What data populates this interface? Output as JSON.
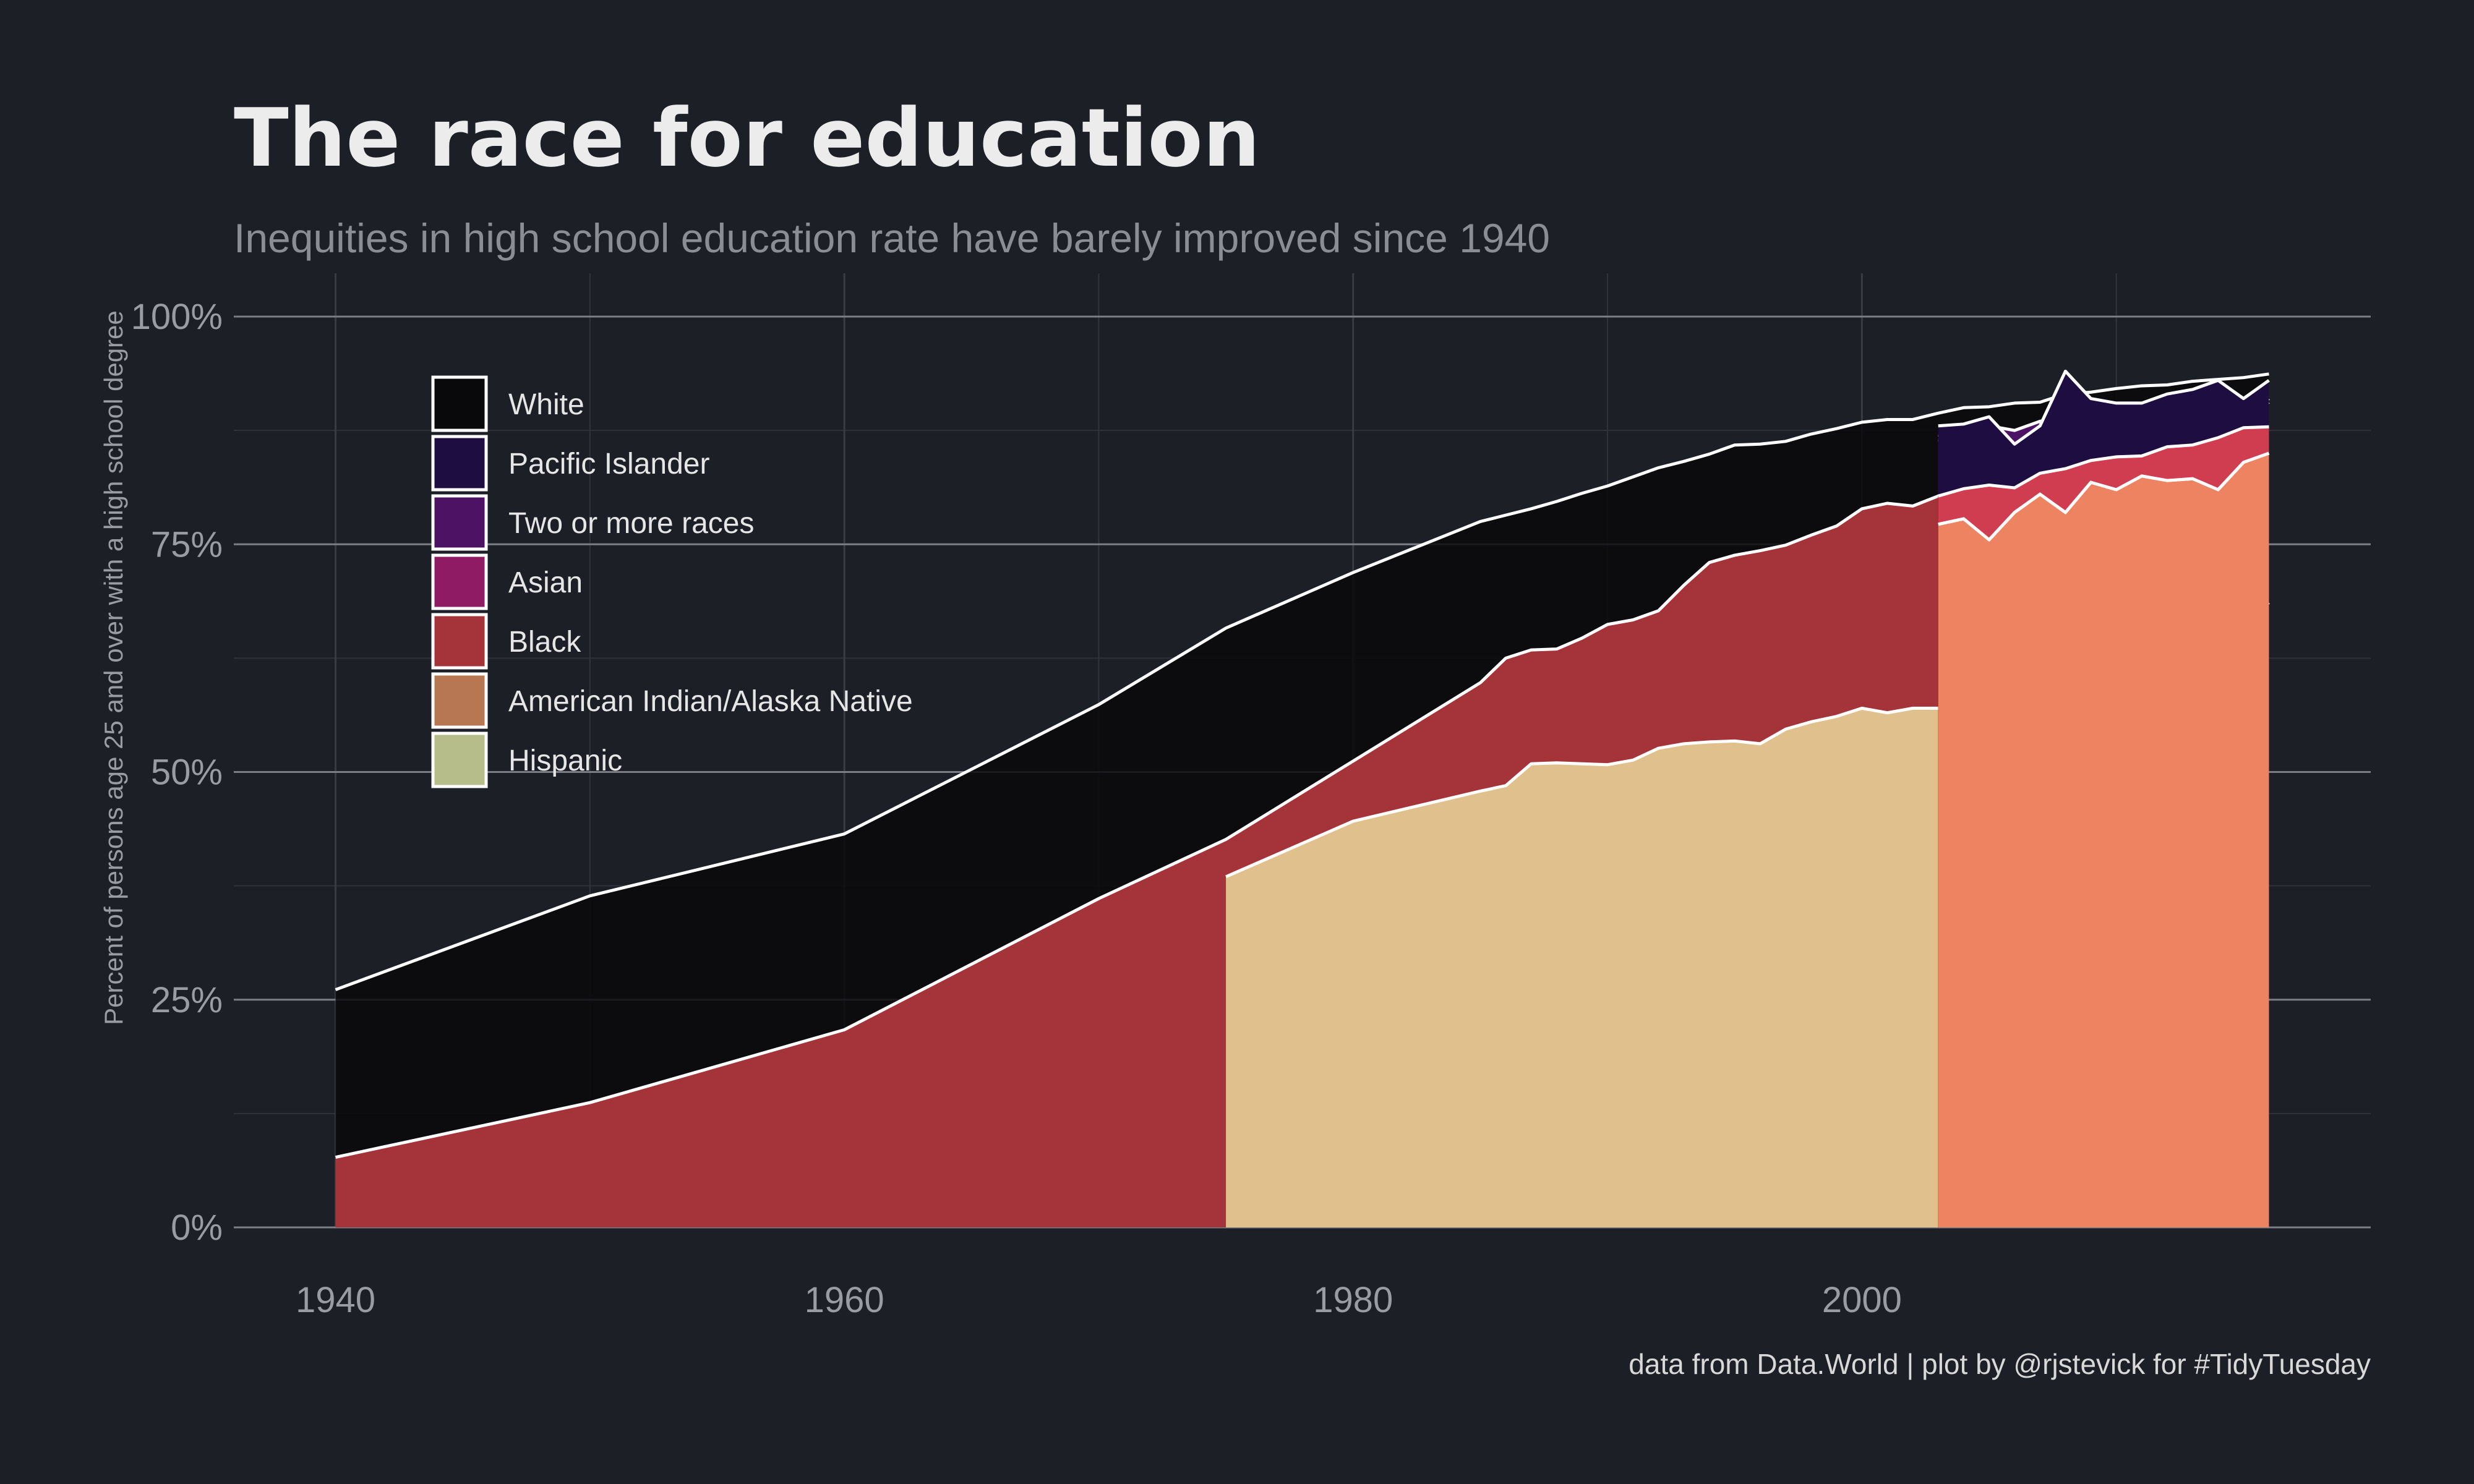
{
  "chart_data": {
    "type": "area",
    "title": "The race for education",
    "subtitle": "Inequities in high school education rate have barely improved since 1940",
    "ylabel": "Percent of persons age 25 and over with a high school degree",
    "xlabel": "",
    "caption": "data from Data.World | plot by @rjstevick for #TidyTuesday",
    "xlim": [
      1936,
      2020
    ],
    "ylim": [
      0,
      100
    ],
    "x_ticks": [
      1940,
      1960,
      1980,
      2000
    ],
    "x_tick_labels": [
      "1940",
      "1960",
      "1980",
      "2000"
    ],
    "y_ticks": [
      0,
      25,
      50,
      75,
      100
    ],
    "y_tick_labels": [
      "0%",
      "25%",
      "50%",
      "75%",
      "100%"
    ],
    "grid": true,
    "legend_position": "top-left",
    "stacking": "overlapping",
    "series": [
      {
        "name": "White",
        "color": "#09090c",
        "points": [
          [
            1940,
            26.1
          ],
          [
            1950,
            36.4
          ],
          [
            1960,
            43.2
          ],
          [
            1970,
            57.4
          ],
          [
            1975,
            65.8
          ],
          [
            1980,
            71.9
          ],
          [
            1985,
            77.5
          ],
          [
            1986,
            78.2
          ],
          [
            1987,
            78.9
          ],
          [
            1988,
            79.7
          ],
          [
            1989,
            80.6
          ],
          [
            1990,
            81.4
          ],
          [
            1991,
            82.4
          ],
          [
            1992,
            83.4
          ],
          [
            1993,
            84.1
          ],
          [
            1994,
            84.9
          ],
          [
            1995,
            85.9
          ],
          [
            1996,
            86.0
          ],
          [
            1997,
            86.3
          ],
          [
            1998,
            87.1
          ],
          [
            1999,
            87.7
          ],
          [
            2000,
            88.4
          ],
          [
            2001,
            88.7
          ],
          [
            2002,
            88.7
          ],
          [
            2003,
            89.4
          ],
          [
            2004,
            90.0
          ],
          [
            2005,
            90.1
          ],
          [
            2006,
            90.5
          ],
          [
            2007,
            90.6
          ],
          [
            2008,
            91.5
          ],
          [
            2009,
            91.7
          ],
          [
            2010,
            92.1
          ],
          [
            2011,
            92.4
          ],
          [
            2012,
            92.5
          ],
          [
            2013,
            92.9
          ],
          [
            2014,
            93.1
          ],
          [
            2015,
            93.3
          ],
          [
            2016,
            93.7
          ]
        ]
      },
      {
        "name": "Pacific Islander",
        "color": "#1d0d40",
        "points": [
          [
            2003,
            88.0
          ],
          [
            2004,
            88.2
          ],
          [
            2005,
            89.0
          ],
          [
            2006,
            86.0
          ],
          [
            2007,
            88.0
          ],
          [
            2008,
            94.0
          ],
          [
            2009,
            91.0
          ],
          [
            2010,
            90.5
          ],
          [
            2011,
            90.5
          ],
          [
            2012,
            91.5
          ],
          [
            2013,
            92.0
          ],
          [
            2014,
            93.0
          ],
          [
            2015,
            91.0
          ],
          [
            2016,
            93.0
          ]
        ]
      },
      {
        "name": "Two or more races",
        "color": "#4d1263",
        "points": [
          [
            2003,
            87.0
          ],
          [
            2004,
            86.5
          ],
          [
            2005,
            88.0
          ],
          [
            2006,
            87.5
          ],
          [
            2007,
            88.5
          ],
          [
            2008,
            89.0
          ],
          [
            2009,
            88.5
          ],
          [
            2010,
            89.0
          ],
          [
            2011,
            89.5
          ],
          [
            2012,
            90.0
          ],
          [
            2013,
            90.5
          ],
          [
            2014,
            90.5
          ],
          [
            2015,
            89.0
          ],
          [
            2016,
            91.0
          ]
        ]
      },
      {
        "name": "Asian",
        "color": "#8e1b64",
        "points": [
          [
            2003,
            86.3
          ],
          [
            2004,
            86.8
          ],
          [
            2005,
            87.6
          ],
          [
            2006,
            87.4
          ],
          [
            2007,
            87.8
          ],
          [
            2008,
            88.8
          ],
          [
            2009,
            87.4
          ],
          [
            2010,
            88.8
          ],
          [
            2011,
            88.6
          ],
          [
            2012,
            89.2
          ],
          [
            2013,
            90.2
          ],
          [
            2014,
            89.6
          ],
          [
            2015,
            89.0
          ],
          [
            2016,
            90.6
          ]
        ]
      },
      {
        "name": "Black",
        "color": "#a5333a",
        "points": [
          [
            1940,
            7.7
          ],
          [
            1950,
            13.7
          ],
          [
            1960,
            21.7
          ],
          [
            1970,
            36.1
          ],
          [
            1975,
            42.6
          ],
          [
            1980,
            51.2
          ],
          [
            1985,
            59.8
          ],
          [
            1986,
            62.5
          ],
          [
            1987,
            63.4
          ],
          [
            1988,
            63.5
          ],
          [
            1989,
            64.7
          ],
          [
            1990,
            66.2
          ],
          [
            1991,
            66.7
          ],
          [
            1992,
            67.7
          ],
          [
            1993,
            70.5
          ],
          [
            1994,
            73.0
          ],
          [
            1995,
            73.8
          ],
          [
            1996,
            74.3
          ],
          [
            1997,
            74.9
          ],
          [
            1998,
            76.0
          ],
          [
            1999,
            77.0
          ],
          [
            2000,
            78.9
          ],
          [
            2001,
            79.5
          ],
          [
            2002,
            79.2
          ],
          [
            2003,
            80.3
          ],
          [
            2004,
            81.1
          ],
          [
            2005,
            81.5
          ],
          [
            2006,
            81.2
          ],
          [
            2007,
            82.8
          ],
          [
            2008,
            83.3
          ],
          [
            2009,
            84.2
          ],
          [
            2010,
            84.6
          ],
          [
            2011,
            84.7
          ],
          [
            2012,
            85.7
          ],
          [
            2013,
            85.9
          ],
          [
            2014,
            86.7
          ],
          [
            2015,
            87.8
          ],
          [
            2016,
            87.9
          ]
        ]
      },
      {
        "name": "American Indian/Alaska Native",
        "color": "#ee8361",
        "points": [
          [
            2003,
            77.2
          ],
          [
            2004,
            77.8
          ],
          [
            2005,
            75.5
          ],
          [
            2006,
            78.5
          ],
          [
            2007,
            80.5
          ],
          [
            2008,
            78.5
          ],
          [
            2009,
            81.8
          ],
          [
            2010,
            81.0
          ],
          [
            2011,
            82.5
          ],
          [
            2012,
            82.0
          ],
          [
            2013,
            82.2
          ],
          [
            2014,
            81.0
          ],
          [
            2015,
            84.0
          ],
          [
            2016,
            85.0
          ]
        ]
      },
      {
        "name": "Hispanic",
        "color": "#e0c08c",
        "points": [
          [
            1975,
            38.5
          ],
          [
            1980,
            44.6
          ],
          [
            1985,
            47.9
          ],
          [
            1986,
            48.5
          ],
          [
            1987,
            50.9
          ],
          [
            1988,
            51.0
          ],
          [
            1989,
            50.9
          ],
          [
            1990,
            50.8
          ],
          [
            1991,
            51.3
          ],
          [
            1992,
            52.6
          ],
          [
            1993,
            53.1
          ],
          [
            1994,
            53.3
          ],
          [
            1995,
            53.4
          ],
          [
            1996,
            53.1
          ],
          [
            1997,
            54.7
          ],
          [
            1998,
            55.5
          ],
          [
            1999,
            56.1
          ],
          [
            2000,
            57.0
          ],
          [
            2001,
            56.5
          ],
          [
            2002,
            57.0
          ],
          [
            2003,
            57.0
          ],
          [
            2004,
            58.4
          ],
          [
            2005,
            58.5
          ],
          [
            2006,
            59.3
          ],
          [
            2007,
            60.3
          ],
          [
            2008,
            62.3
          ],
          [
            2009,
            61.9
          ],
          [
            2010,
            62.9
          ],
          [
            2011,
            64.3
          ],
          [
            2012,
            65.0
          ],
          [
            2013,
            66.2
          ],
          [
            2014,
            66.4
          ],
          [
            2015,
            66.7
          ],
          [
            2016,
            68.6
          ]
        ]
      }
    ]
  }
}
